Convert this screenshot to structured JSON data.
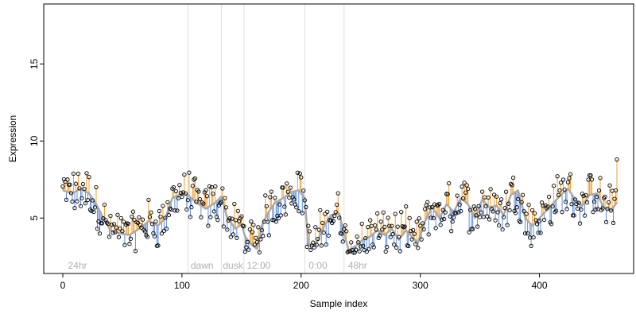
{
  "chart_data": {
    "type": "scatter",
    "title": "",
    "xlabel": "Sample index",
    "ylabel": "Expression",
    "xlim": [
      -16,
      479
    ],
    "ylim": [
      1.4,
      18.9
    ],
    "x_ticks": [
      0,
      100,
      200,
      300,
      400
    ],
    "y_ticks": [
      5,
      10,
      15
    ],
    "grid": false,
    "legend": "none",
    "colors": {
      "trend": "#aaaaaa",
      "above": "#f0a030",
      "below": "#6090d8",
      "divider": "#dddddd",
      "point_stroke": "#000000"
    },
    "region_boundaries": [
      105,
      133,
      152,
      203,
      236
    ],
    "region_labels": [
      {
        "label": "24hr",
        "x": 3
      },
      {
        "label": "dawn",
        "x": 106
      },
      {
        "label": "dusk",
        "x": 133
      },
      {
        "label": "12:00",
        "x": 153
      },
      {
        "label": "0:00",
        "x": 205
      },
      {
        "label": "48hr",
        "x": 238
      }
    ],
    "series_desc": "trend",
    "trend_anchors": [
      [
        0,
        6.8
      ],
      [
        8,
        6.6
      ],
      [
        15,
        6.9
      ],
      [
        22,
        6.6
      ],
      [
        28,
        5.9
      ],
      [
        34,
        5.0
      ],
      [
        40,
        4.2
      ],
      [
        48,
        4.0
      ],
      [
        56,
        3.9
      ],
      [
        64,
        4.3
      ],
      [
        72,
        4.8
      ],
      [
        80,
        4.5
      ],
      [
        86,
        5.0
      ],
      [
        92,
        6.3
      ],
      [
        100,
        6.6
      ],
      [
        105,
        6.5
      ],
      [
        112,
        6.0
      ],
      [
        120,
        5.6
      ],
      [
        128,
        6.0
      ],
      [
        133,
        6.4
      ],
      [
        138,
        5.0
      ],
      [
        145,
        4.3
      ],
      [
        150,
        4.6
      ],
      [
        153,
        3.8
      ],
      [
        158,
        3.3
      ],
      [
        163,
        3.0
      ],
      [
        167,
        4.5
      ],
      [
        172,
        5.3
      ],
      [
        178,
        6.0
      ],
      [
        185,
        6.3
      ],
      [
        192,
        6.7
      ],
      [
        198,
        6.8
      ],
      [
        203,
        6.3
      ],
      [
        206,
        3.3
      ],
      [
        212,
        3.2
      ],
      [
        218,
        4.3
      ],
      [
        225,
        5.2
      ],
      [
        232,
        5.3
      ],
      [
        236,
        4.0
      ],
      [
        240,
        2.9
      ],
      [
        246,
        3.2
      ],
      [
        252,
        3.6
      ],
      [
        258,
        3.8
      ],
      [
        264,
        4.2
      ],
      [
        270,
        3.9
      ],
      [
        276,
        4.3
      ],
      [
        282,
        3.6
      ],
      [
        288,
        4.2
      ],
      [
        294,
        3.7
      ],
      [
        298,
        3.4
      ],
      [
        304,
        4.8
      ],
      [
        310,
        5.7
      ],
      [
        316,
        5.0
      ],
      [
        322,
        5.9
      ],
      [
        328,
        5.4
      ],
      [
        334,
        6.3
      ],
      [
        340,
        5.9
      ],
      [
        346,
        5.0
      ],
      [
        352,
        6.2
      ],
      [
        358,
        5.7
      ],
      [
        364,
        5.8
      ],
      [
        370,
        5.2
      ],
      [
        376,
        6.5
      ],
      [
        382,
        6.8
      ],
      [
        388,
        5.0
      ],
      [
        394,
        4.5
      ],
      [
        400,
        5.0
      ],
      [
        406,
        5.5
      ],
      [
        412,
        6.0
      ],
      [
        418,
        6.5
      ],
      [
        424,
        6.9
      ],
      [
        430,
        6.2
      ],
      [
        436,
        5.8
      ],
      [
        442,
        6.5
      ],
      [
        448,
        6.6
      ],
      [
        454,
        5.7
      ],
      [
        460,
        5.5
      ],
      [
        465,
        6.0
      ]
    ],
    "point_count": 466,
    "points_desc": "466 expression values (index 0-465), roughly 2.7-8.8, highest at the last sample (~8.8)"
  }
}
